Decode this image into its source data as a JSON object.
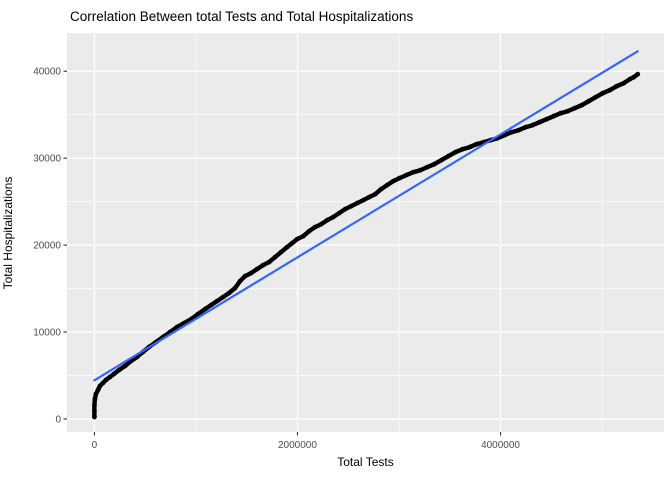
{
  "title": "Correlation Between total Tests and Total Hospitalizations",
  "colors": {
    "figure_bg": "#FFFFFF",
    "panel_bg": "#EBEBEB",
    "grid_major": "#FFFFFF",
    "grid_minor": "#FFFFFF",
    "tick_mark": "#333333",
    "tick_label": "#4D4D4D",
    "axis_title": "#000000",
    "title": "#000000",
    "points": "#000000",
    "smooth_line": "#3366FF"
  },
  "chart_data": {
    "type": "scatter",
    "title": "Correlation Between total Tests and Total Hospitalizations",
    "xlabel": "Total Tests",
    "ylabel": "Total Hospitalizations",
    "grid": true,
    "legend": false,
    "xlim": [
      -270000,
      5610000
    ],
    "ylim": [
      -1500,
      44400
    ],
    "x_ticks": [
      0,
      2000000,
      4000000
    ],
    "x_tick_labels": [
      "0",
      "2000000",
      "4000000"
    ],
    "x_minor_ticks": [
      1000000,
      3000000,
      5000000
    ],
    "y_ticks": [
      0,
      10000,
      20000,
      30000,
      40000
    ],
    "y_tick_labels": [
      "0",
      "10000",
      "20000",
      "30000",
      "40000"
    ],
    "y_minor_ticks": [
      5000,
      15000,
      25000,
      35000
    ],
    "series": [
      {
        "name": "cumulative-observations",
        "kind": "points",
        "color": "#000000",
        "points": [
          [
            0,
            230
          ],
          [
            0,
            920
          ],
          [
            0,
            1610
          ],
          [
            5000,
            2300
          ],
          [
            15000,
            2870
          ],
          [
            35000,
            3330
          ],
          [
            54000,
            3790
          ],
          [
            84000,
            4140
          ],
          [
            113000,
            4480
          ],
          [
            153000,
            4830
          ],
          [
            192000,
            5170
          ],
          [
            242000,
            5630
          ],
          [
            301000,
            6090
          ],
          [
            360000,
            6670
          ],
          [
            419000,
            7130
          ],
          [
            478000,
            7700
          ],
          [
            538000,
            8280
          ],
          [
            607000,
            8850
          ],
          [
            676000,
            9430
          ],
          [
            745000,
            10000
          ],
          [
            814000,
            10580
          ],
          [
            883000,
            11030
          ],
          [
            952000,
            11490
          ],
          [
            1021000,
            12070
          ],
          [
            1090000,
            12640
          ],
          [
            1149000,
            13100
          ],
          [
            1208000,
            13560
          ],
          [
            1267000,
            14020
          ],
          [
            1326000,
            14480
          ],
          [
            1386000,
            15060
          ],
          [
            1435000,
            15860
          ],
          [
            1484000,
            16440
          ],
          [
            1543000,
            16780
          ],
          [
            1602000,
            17240
          ],
          [
            1662000,
            17700
          ],
          [
            1721000,
            18050
          ],
          [
            1780000,
            18620
          ],
          [
            1839000,
            19200
          ],
          [
            1898000,
            19770
          ],
          [
            1948000,
            20230
          ],
          [
            1997000,
            20690
          ],
          [
            2056000,
            21030
          ],
          [
            2115000,
            21610
          ],
          [
            2174000,
            22070
          ],
          [
            2234000,
            22410
          ],
          [
            2293000,
            22870
          ],
          [
            2352000,
            23220
          ],
          [
            2411000,
            23680
          ],
          [
            2470000,
            24140
          ],
          [
            2529000,
            24480
          ],
          [
            2589000,
            24830
          ],
          [
            2648000,
            25170
          ],
          [
            2707000,
            25520
          ],
          [
            2766000,
            25860
          ],
          [
            2825000,
            26440
          ],
          [
            2884000,
            26900
          ],
          [
            2944000,
            27360
          ],
          [
            3003000,
            27700
          ],
          [
            3072000,
            28050
          ],
          [
            3141000,
            28390
          ],
          [
            3210000,
            28620
          ],
          [
            3279000,
            28970
          ],
          [
            3348000,
            29310
          ],
          [
            3417000,
            29770
          ],
          [
            3486000,
            30230
          ],
          [
            3555000,
            30690
          ],
          [
            3625000,
            31030
          ],
          [
            3694000,
            31260
          ],
          [
            3763000,
            31610
          ],
          [
            3832000,
            31840
          ],
          [
            3901000,
            32070
          ],
          [
            3970000,
            32300
          ],
          [
            4039000,
            32640
          ],
          [
            4108000,
            32990
          ],
          [
            4177000,
            33220
          ],
          [
            4246000,
            33560
          ],
          [
            4315000,
            33790
          ],
          [
            4384000,
            34140
          ],
          [
            4454000,
            34480
          ],
          [
            4523000,
            34830
          ],
          [
            4592000,
            35170
          ],
          [
            4661000,
            35400
          ],
          [
            4730000,
            35750
          ],
          [
            4799000,
            36090
          ],
          [
            4868000,
            36550
          ],
          [
            4937000,
            37010
          ],
          [
            5006000,
            37470
          ],
          [
            5075000,
            37820
          ],
          [
            5144000,
            38280
          ],
          [
            5213000,
            38620
          ],
          [
            5273000,
            39080
          ],
          [
            5312000,
            39310
          ],
          [
            5351000,
            39660
          ]
        ]
      },
      {
        "name": "linear-fit",
        "kind": "line",
        "color": "#3366FF",
        "points": [
          [
            0,
            4450
          ],
          [
            5351000,
            42300
          ]
        ]
      }
    ]
  }
}
